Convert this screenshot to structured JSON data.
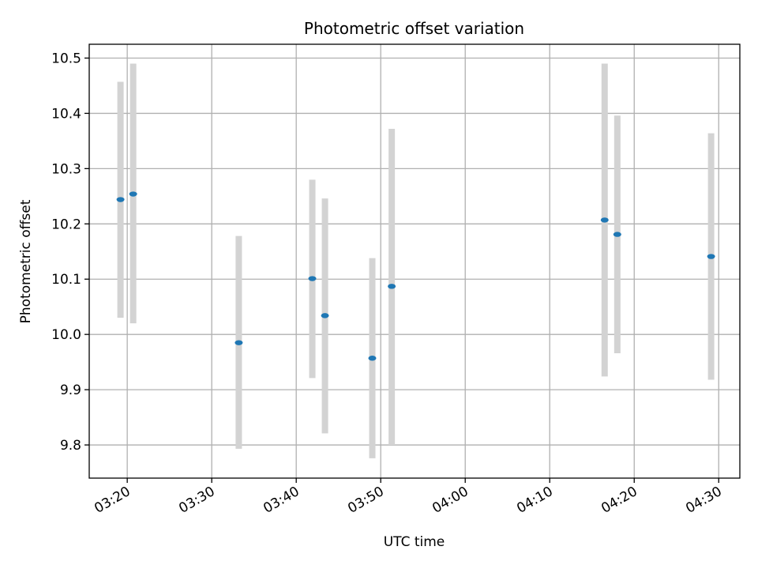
{
  "chart_data": {
    "type": "scatter",
    "title": "Photometric offset variation",
    "xlabel": "UTC time",
    "ylabel": "Photometric offset",
    "x_unit": "minutes since 03:00 UTC",
    "xlim": [
      15.5,
      92.5
    ],
    "ylim": [
      9.74,
      10.525
    ],
    "x_ticks": [
      {
        "value": 20,
        "label": "03:20"
      },
      {
        "value": 30,
        "label": "03:30"
      },
      {
        "value": 40,
        "label": "03:40"
      },
      {
        "value": 50,
        "label": "03:50"
      },
      {
        "value": 60,
        "label": "04:00"
      },
      {
        "value": 70,
        "label": "04:10"
      },
      {
        "value": 80,
        "label": "04:20"
      },
      {
        "value": 90,
        "label": "04:30"
      }
    ],
    "y_ticks": [
      {
        "value": 9.8,
        "label": "9.8"
      },
      {
        "value": 9.9,
        "label": "9.9"
      },
      {
        "value": 10.0,
        "label": "10.0"
      },
      {
        "value": 10.1,
        "label": "10.1"
      },
      {
        "value": 10.2,
        "label": "10.2"
      },
      {
        "value": 10.3,
        "label": "10.3"
      },
      {
        "value": 10.4,
        "label": "10.4"
      },
      {
        "value": 10.5,
        "label": "10.5"
      }
    ],
    "grid": true,
    "series": [
      {
        "name": "Photometric offset",
        "color": "#1f77b4",
        "errorbar_color": "#d3d3d3",
        "points": [
          {
            "x": 19.2,
            "y": 10.244,
            "ylow": 10.03,
            "yhigh": 10.457
          },
          {
            "x": 20.7,
            "y": 10.254,
            "ylow": 10.02,
            "yhigh": 10.49
          },
          {
            "x": 33.2,
            "y": 9.985,
            "ylow": 9.793,
            "yhigh": 10.178
          },
          {
            "x": 41.9,
            "y": 10.101,
            "ylow": 9.921,
            "yhigh": 10.28
          },
          {
            "x": 43.4,
            "y": 10.034,
            "ylow": 9.821,
            "yhigh": 10.246
          },
          {
            "x": 49.0,
            "y": 9.957,
            "ylow": 9.776,
            "yhigh": 10.138
          },
          {
            "x": 51.3,
            "y": 10.087,
            "ylow": 9.8,
            "yhigh": 10.372
          },
          {
            "x": 76.5,
            "y": 10.207,
            "ylow": 9.924,
            "yhigh": 10.49
          },
          {
            "x": 78.0,
            "y": 10.181,
            "ylow": 9.966,
            "yhigh": 10.396
          },
          {
            "x": 89.1,
            "y": 10.141,
            "ylow": 9.918,
            "yhigh": 10.364
          }
        ]
      }
    ]
  }
}
